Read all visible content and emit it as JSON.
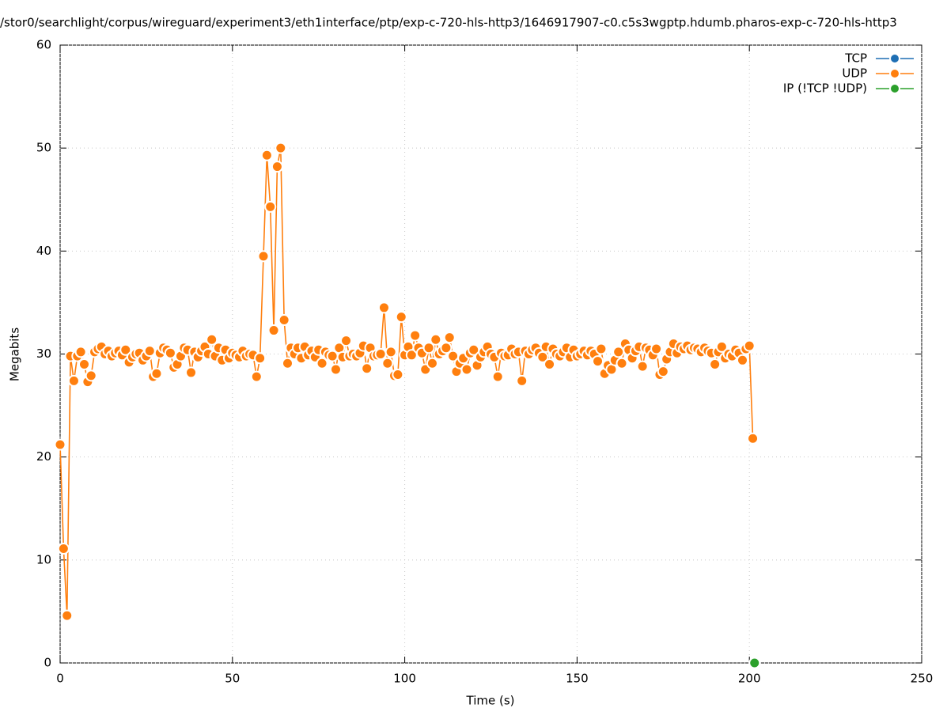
{
  "chart_data": {
    "type": "line",
    "title": "/stor0/searchlight/corpus/wireguard/experiment3/eth1interface/ptp/exp-c-720-hls-http3/1646917907-c0.c5s3wgptp.hdumb.pharos-exp-c-720-hls-http3",
    "x_label": "Time (s)",
    "y_label": "Megabits",
    "xlim": [
      0,
      250
    ],
    "xticks": [
      0,
      50,
      100,
      150,
      200,
      250
    ],
    "ylim": [
      0,
      60
    ],
    "yticks": [
      0,
      10,
      20,
      30,
      40,
      50,
      60
    ],
    "grid": true,
    "legend": "top-right",
    "series": [
      {
        "name": "TCP",
        "color": "#1f6fb4",
        "x": [],
        "values": []
      },
      {
        "name": "UDP",
        "color": "#ff7f0e",
        "x": [
          0,
          1,
          2,
          3,
          4,
          5,
          6,
          7,
          8,
          9,
          10,
          11,
          12,
          13,
          14,
          15,
          16,
          17,
          18,
          19,
          20,
          21,
          22,
          23,
          24,
          25,
          26,
          27,
          28,
          29,
          30,
          31,
          32,
          33,
          34,
          35,
          36,
          37,
          38,
          39,
          40,
          41,
          42,
          43,
          44,
          45,
          46,
          47,
          48,
          49,
          50,
          51,
          52,
          53,
          54,
          55,
          56,
          57,
          58,
          59,
          60,
          61,
          62,
          63,
          64,
          65,
          66,
          67,
          68,
          69,
          70,
          71,
          72,
          73,
          74,
          75,
          76,
          77,
          78,
          79,
          80,
          81,
          82,
          83,
          84,
          85,
          86,
          87,
          88,
          89,
          90,
          91,
          92,
          93,
          94,
          95,
          96,
          97,
          98,
          99,
          100,
          101,
          102,
          103,
          104,
          105,
          106,
          107,
          108,
          109,
          110,
          111,
          112,
          113,
          114,
          115,
          116,
          117,
          118,
          119,
          120,
          121,
          122,
          123,
          124,
          125,
          126,
          127,
          128,
          129,
          130,
          131,
          132,
          133,
          134,
          135,
          136,
          137,
          138,
          139,
          140,
          141,
          142,
          143,
          144,
          145,
          146,
          147,
          148,
          149,
          150,
          151,
          152,
          153,
          154,
          155,
          156,
          157,
          158,
          159,
          160,
          161,
          162,
          163,
          164,
          165,
          166,
          167,
          168,
          169,
          170,
          171,
          172,
          173,
          174,
          175,
          176,
          177,
          178,
          179,
          180,
          181,
          182,
          183,
          184,
          185,
          186,
          187,
          188,
          189,
          190,
          191,
          192,
          193,
          194,
          195,
          196,
          197,
          198,
          199,
          200,
          201
        ],
        "values": [
          21.2,
          11.1,
          4.6,
          29.8,
          27.4,
          29.8,
          30.2,
          29.0,
          27.3,
          27.9,
          30.2,
          30.5,
          30.7,
          30.0,
          30.3,
          29.8,
          30.1,
          30.3,
          29.9,
          30.4,
          29.2,
          29.7,
          30.0,
          30.1,
          29.4,
          29.8,
          30.3,
          27.8,
          28.1,
          30.1,
          30.6,
          30.4,
          30.1,
          28.7,
          29.0,
          29.8,
          30.6,
          30.4,
          28.2,
          30.2,
          29.7,
          30.3,
          30.7,
          30.0,
          31.4,
          29.8,
          30.6,
          29.4,
          30.4,
          29.6,
          30.1,
          29.9,
          29.7,
          30.3,
          29.8,
          30.0,
          29.9,
          27.8,
          29.6,
          39.5,
          49.3,
          44.3,
          32.3,
          48.2,
          50.0,
          33.3,
          29.1,
          30.6,
          30.0,
          30.6,
          29.6,
          30.7,
          29.9,
          30.3,
          29.7,
          30.4,
          29.1,
          30.2,
          29.9,
          29.8,
          28.5,
          30.6,
          29.7,
          31.3,
          29.8,
          30.0,
          29.8,
          30.1,
          30.8,
          28.6,
          30.6,
          29.8,
          29.9,
          30.0,
          34.5,
          29.1,
          30.2,
          27.9,
          28.0,
          33.6,
          29.9,
          30.7,
          29.9,
          31.8,
          30.6,
          30.1,
          28.5,
          30.6,
          29.1,
          31.4,
          30.0,
          30.3,
          30.6,
          31.6,
          29.8,
          28.3,
          29.1,
          29.6,
          28.5,
          30.1,
          30.4,
          28.9,
          29.7,
          30.2,
          30.7,
          30.0,
          29.7,
          27.8,
          30.1,
          29.8,
          29.9,
          30.5,
          30.0,
          30.2,
          27.4,
          30.3,
          30.0,
          30.4,
          30.6,
          30.1,
          29.7,
          30.7,
          29.0,
          30.5,
          30.0,
          29.8,
          30.2,
          30.6,
          29.7,
          30.4,
          29.8,
          30.0,
          30.3,
          29.9,
          30.3,
          30.0,
          29.3,
          30.5,
          28.1,
          28.9,
          28.5,
          29.4,
          30.2,
          29.1,
          31.0,
          30.4,
          29.6,
          30.3,
          30.7,
          28.8,
          30.6,
          30.4,
          29.9,
          30.5,
          28.0,
          28.3,
          29.5,
          30.2,
          31.0,
          30.1,
          30.7,
          30.5,
          30.8,
          30.4,
          30.6,
          30.5,
          30.2,
          30.6,
          30.3,
          30.1,
          29.0,
          30.2,
          30.7,
          29.6,
          30.0,
          29.8,
          30.4,
          30.1,
          29.4,
          30.5,
          30.8,
          21.8
        ]
      },
      {
        "name": "IP (!TCP  !UDP)",
        "color": "#2ca02c",
        "x": [
          201.5
        ],
        "values": [
          0
        ]
      }
    ]
  }
}
